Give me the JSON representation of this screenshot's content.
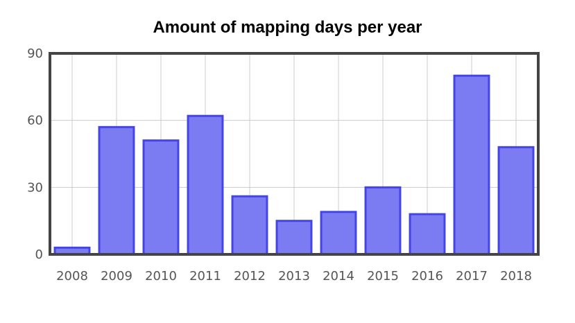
{
  "chart_data": {
    "type": "bar",
    "title": "Amount of mapping days per year",
    "xlabel": "",
    "ylabel": "",
    "categories": [
      "2008",
      "2009",
      "2010",
      "2011",
      "2012",
      "2013",
      "2014",
      "2015",
      "2016",
      "2017",
      "2018"
    ],
    "values": [
      3,
      57,
      51,
      62,
      26,
      15,
      19,
      30,
      18,
      80,
      48
    ],
    "ylim": [
      0,
      90
    ],
    "yticks": [
      0,
      30,
      60,
      90
    ],
    "grid": true,
    "colors": {
      "bar_fill": "#7b7cf2",
      "bar_stroke": "#4545e6",
      "grid": "#cccccc",
      "frame": "#444444"
    }
  }
}
